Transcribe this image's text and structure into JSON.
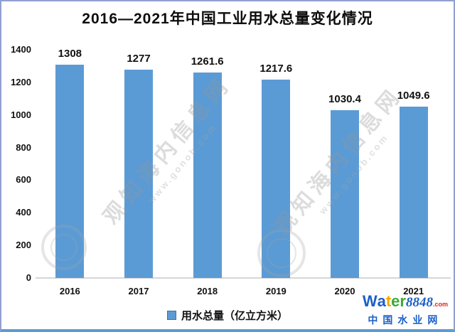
{
  "title": "2016—2021年中国工业用水总量变化情况",
  "chart_data": {
    "type": "bar",
    "title": "2016—2021年中国工业用水总量变化情况",
    "categories": [
      "2016",
      "2017",
      "2018",
      "2019",
      "2020",
      "2021"
    ],
    "values": [
      1308,
      1277,
      1261.6,
      1217.6,
      1030.4,
      1049.6
    ],
    "value_labels": [
      "1308",
      "1277",
      "1261.6",
      "1217.6",
      "1030.4",
      "1049.6"
    ],
    "series_name": "用水总量（亿立方米）",
    "xlabel": "",
    "ylabel": "",
    "ylim": [
      0,
      1400
    ],
    "yticks": [
      0,
      200,
      400,
      600,
      800,
      1000,
      1200,
      1400
    ],
    "grid": false,
    "legend_position": "bottom",
    "bar_color": "#5b9bd5"
  },
  "legend": {
    "label": "用水总量（亿立方米）",
    "swatch_color": "#5b9bd5"
  },
  "watermark": {
    "text": "观知海内信息网",
    "url": "www.gonob.com"
  },
  "logo": {
    "letters": [
      {
        "ch": "W",
        "color": "#1a5fc8"
      },
      {
        "ch": "a",
        "color": "#1a5fc8"
      },
      {
        "ch": "t",
        "color": "#f7a600"
      },
      {
        "ch": "e",
        "color": "#3daa35"
      },
      {
        "ch": "r",
        "color": "#3daa35"
      }
    ],
    "number": "8848",
    "number_color": "#1a5fc8",
    "tld": ".com",
    "tld_color": "#e02020",
    "line2": "中国水业网",
    "line2_color": "#1a5fc8"
  }
}
